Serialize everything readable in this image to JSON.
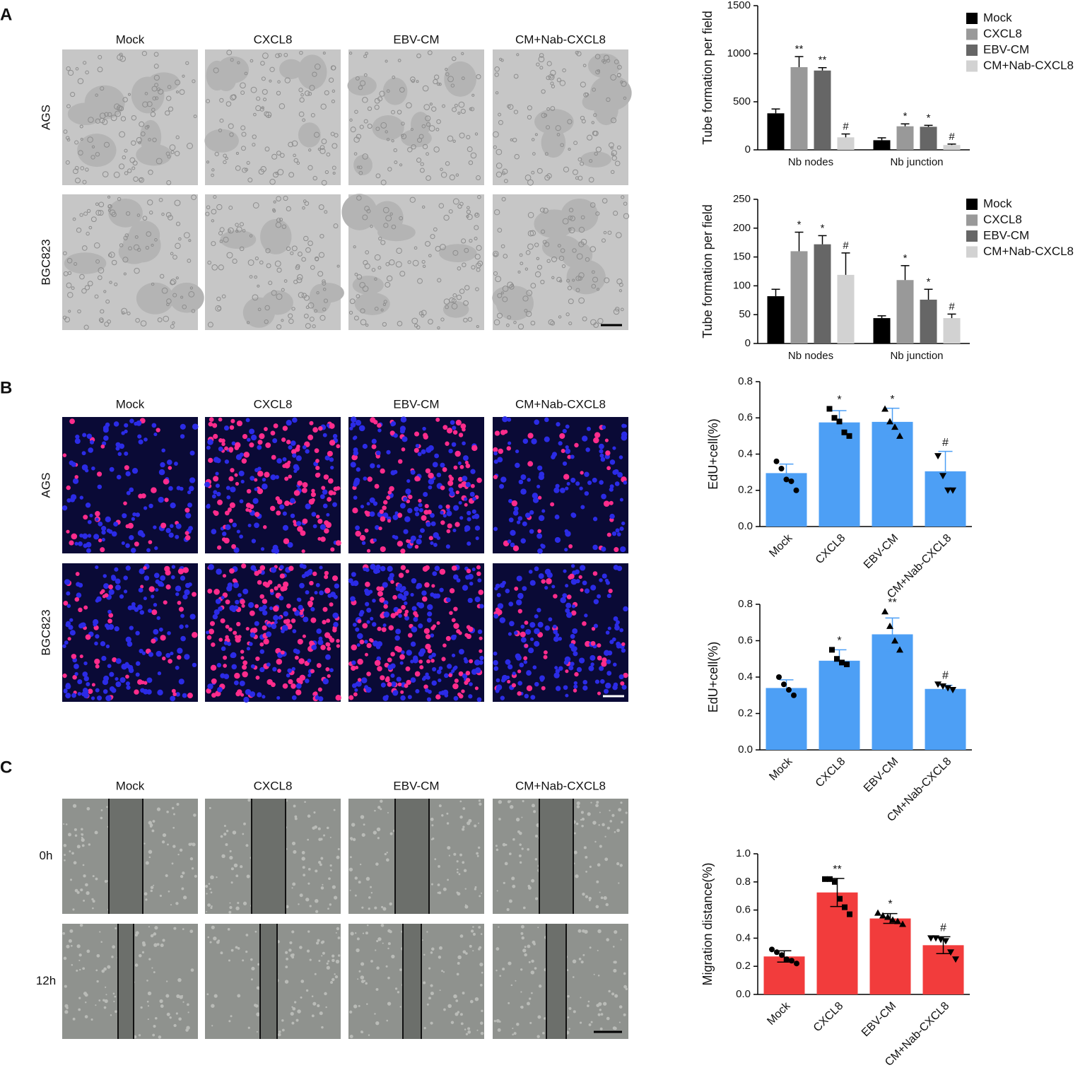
{
  "panels": [
    {
      "label": "A",
      "columns": [
        "Mock",
        "CXCL8",
        "EBV-CM",
        "CM+Nab-CXCL8"
      ],
      "rows": [
        "AGS",
        "BGC823"
      ]
    },
    {
      "label": "B",
      "columns": [
        "Mock",
        "CXCL8",
        "EBV-CM",
        "CM+Nab-CXCL8"
      ],
      "rows": [
        "AGS",
        "BGC823"
      ]
    },
    {
      "label": "C",
      "columns": [
        "Mock",
        "CXCL8",
        "EBV-CM",
        "CM+Nab-CXCL8"
      ],
      "rows": [
        "0h",
        "12h"
      ]
    }
  ],
  "chart_data": [
    {
      "type": "grouped_bar",
      "y_label": "Tube formation per field",
      "categories": [
        "Nb nodes",
        "Nb junction"
      ],
      "ylim": [
        0,
        1500
      ],
      "yticks": [
        0,
        500,
        1000,
        1500
      ],
      "series": [
        {
          "name": "Mock",
          "color": "#000000",
          "values": [
            380,
            100
          ],
          "errors": [
            45,
            25
          ],
          "sig": [
            null,
            null
          ]
        },
        {
          "name": "CXCL8",
          "color": "#999999",
          "values": [
            860,
            245
          ],
          "errors": [
            110,
            25
          ],
          "sig": [
            "**",
            "*"
          ]
        },
        {
          "name": "EBV-CM",
          "color": "#666666",
          "values": [
            825,
            240
          ],
          "errors": [
            30,
            15
          ],
          "sig": [
            "**",
            "*"
          ]
        },
        {
          "name": "CM+Nab-CXCL8",
          "color": "#d2d2d2",
          "values": [
            130,
            50
          ],
          "errors": [
            35,
            10
          ],
          "sig": [
            "#",
            "#"
          ]
        }
      ]
    },
    {
      "type": "grouped_bar",
      "y_label": "Tube formation per field",
      "categories": [
        "Nb nodes",
        "Nb junction"
      ],
      "ylim": [
        0,
        250
      ],
      "yticks": [
        0,
        50,
        100,
        150,
        200,
        250
      ],
      "series": [
        {
          "name": "Mock",
          "color": "#000000",
          "values": [
            82,
            44
          ],
          "errors": [
            12,
            4
          ],
          "sig": [
            null,
            null
          ]
        },
        {
          "name": "CXCL8",
          "color": "#999999",
          "values": [
            160,
            110
          ],
          "errors": [
            33,
            25
          ],
          "sig": [
            "*",
            "*"
          ]
        },
        {
          "name": "EBV-CM",
          "color": "#666666",
          "values": [
            172,
            76
          ],
          "errors": [
            15,
            18
          ],
          "sig": [
            "*",
            "*"
          ]
        },
        {
          "name": "CM+Nab-CXCL8",
          "color": "#d2d2d2",
          "values": [
            119,
            44
          ],
          "errors": [
            38,
            7
          ],
          "sig": [
            "#",
            "#"
          ]
        }
      ]
    },
    {
      "type": "bar",
      "y_label": "EdU+cell(%)",
      "categories": [
        "Mock",
        "CXCL8",
        "EBV-CM",
        "CM+Nab-CXCL8"
      ],
      "values": [
        0.295,
        0.575,
        0.578,
        0.305
      ],
      "errors": [
        0.05,
        0.065,
        0.075,
        0.11
      ],
      "sig": [
        null,
        "*",
        "*",
        "#"
      ],
      "points": [
        [
          0.36,
          0.32,
          0.26,
          0.25,
          0.2
        ],
        [
          0.65,
          0.6,
          0.58,
          0.52,
          0.5
        ],
        [
          0.65,
          0.58,
          0.55,
          0.5
        ],
        [
          0.39,
          0.28,
          0.2,
          0.2
        ]
      ],
      "markers": [
        "circle",
        "square",
        "triangle",
        "triangle-down"
      ],
      "color": "#4d9ff5",
      "error_color": "#4d9ff5",
      "ylim": [
        0,
        0.8
      ],
      "yticks": [
        {
          "value": 0,
          "label": "0.0"
        },
        0.2,
        0.4,
        0.6,
        0.8
      ]
    },
    {
      "type": "bar",
      "y_label": "EdU+cell(%)",
      "categories": [
        "Mock",
        "CXCL8",
        "EBV-CM",
        "CM+Nab-CXCL8"
      ],
      "values": [
        0.34,
        0.49,
        0.635,
        0.335
      ],
      "errors": [
        0.045,
        0.06,
        0.09,
        0.02
      ],
      "sig": [
        null,
        "*",
        "**",
        "#"
      ],
      "points": [
        [
          0.4,
          0.36,
          0.33,
          0.3
        ],
        [
          0.55,
          0.5,
          0.48,
          0.47
        ],
        [
          0.76,
          0.68,
          0.6,
          0.55
        ],
        [
          0.36,
          0.35,
          0.34,
          0.33
        ]
      ],
      "markers": [
        "circle",
        "square",
        "triangle",
        "triangle-down"
      ],
      "color": "#4d9ff5",
      "error_color": "#4d9ff5",
      "ylim": [
        0,
        0.8
      ],
      "yticks": [
        {
          "value": 0,
          "label": "0.0"
        },
        0.2,
        0.4,
        0.6,
        0.8
      ]
    },
    {
      "type": "bar",
      "y_label": "Migration distance(%)",
      "categories": [
        "Mock",
        "CXCL8",
        "EBV-CM",
        "CM+Nab-CXCL8"
      ],
      "values": [
        0.27,
        0.725,
        0.54,
        0.35
      ],
      "errors": [
        0.04,
        0.1,
        0.035,
        0.06
      ],
      "sig": [
        null,
        "**",
        "*",
        "#"
      ],
      "points": [
        [
          0.32,
          0.3,
          0.28,
          0.25,
          0.24,
          0.22
        ],
        [
          0.82,
          0.82,
          0.8,
          0.68,
          0.62,
          0.57
        ],
        [
          0.58,
          0.56,
          0.55,
          0.53,
          0.52,
          0.5
        ],
        [
          0.4,
          0.4,
          0.39,
          0.38,
          0.3,
          0.25
        ]
      ],
      "markers": [
        "circle",
        "square",
        "triangle",
        "triangle-down"
      ],
      "color": "#f23c3c",
      "error_color": "#000000",
      "ylim": [
        0,
        1.0
      ],
      "yticks": [
        {
          "value": 0,
          "label": "0.0"
        },
        0.2,
        0.4,
        0.6,
        0.8,
        {
          "value": 1.0,
          "label": "1.0"
        }
      ]
    }
  ]
}
